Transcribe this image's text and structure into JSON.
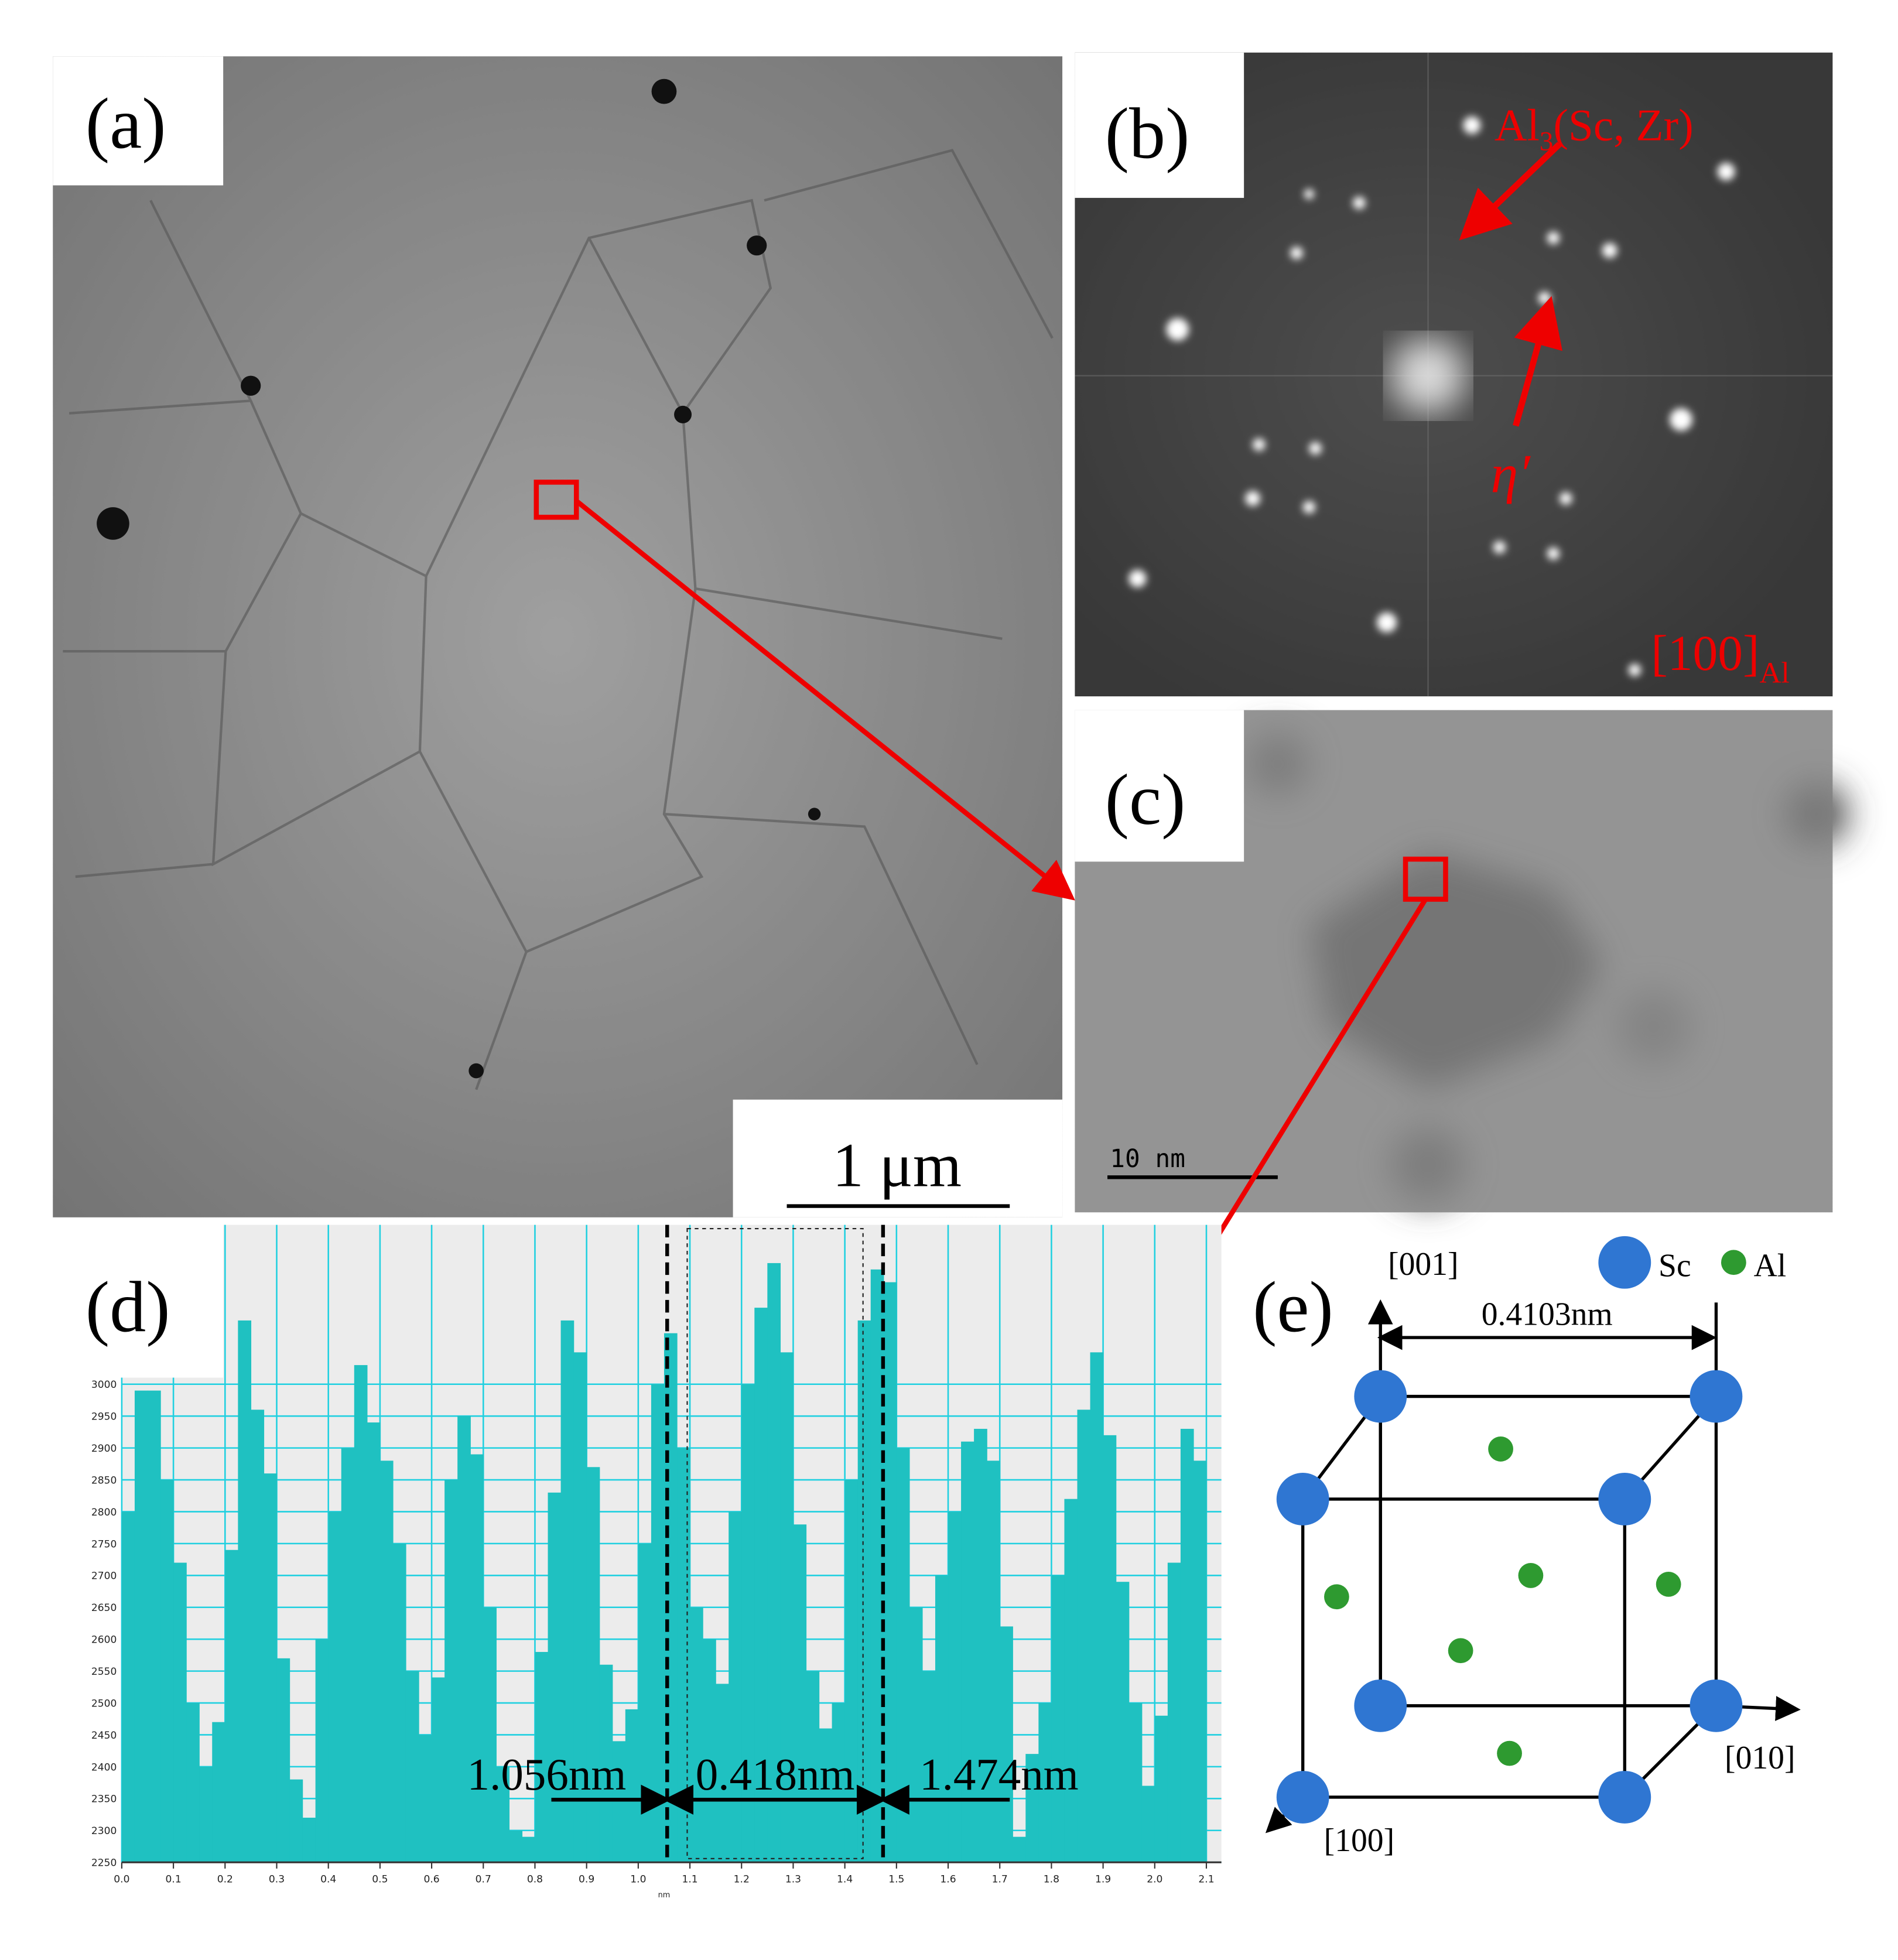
{
  "panels": {
    "a": {
      "label": "(a)",
      "scale_bar": "1 μm"
    },
    "b": {
      "label": "(b)",
      "precipitate": {
        "base": "Al",
        "sub": "3",
        "rest": "(Sc, Zr)"
      },
      "phase": "η′",
      "zone_axis": {
        "base": "[100]",
        "sub": "Al"
      }
    },
    "c": {
      "label": "(c)",
      "scale_bar": "10 nm"
    },
    "d": {
      "label": "(d)"
    },
    "e": {
      "label": "(e)",
      "axis_z": "[001]",
      "axis_y": "[010]",
      "axis_x": "[100]",
      "legend": [
        "Sc",
        "Al"
      ],
      "lattice": "0.4103nm"
    }
  },
  "chart_data": {
    "type": "histogram",
    "color": "#1fc1c1",
    "xlabel": "nm",
    "bins": [
      0,
      0.025,
      0.05,
      0.075,
      0.1,
      0.125,
      0.15,
      0.175,
      0.2,
      0.225,
      0.25,
      0.275,
      0.3,
      0.325,
      0.35,
      0.375,
      0.4,
      0.425,
      0.45,
      0.475,
      0.5,
      0.525,
      0.55,
      0.575,
      0.6,
      0.625,
      0.65,
      0.675,
      0.7,
      0.725,
      0.75,
      0.775,
      0.8,
      0.825,
      0.85,
      0.875,
      0.9,
      0.925,
      0.95,
      0.975,
      1.0,
      1.025,
      1.05,
      1.075,
      1.1,
      1.125,
      1.15,
      1.175,
      1.2,
      1.225,
      1.25,
      1.275,
      1.3,
      1.325,
      1.35,
      1.375,
      1.4,
      1.425,
      1.45,
      1.475,
      1.5,
      1.525,
      1.55,
      1.575,
      1.6,
      1.625,
      1.65,
      1.675,
      1.7,
      1.725,
      1.75,
      1.775,
      1.8,
      1.825,
      1.85,
      1.875,
      1.9,
      1.925,
      1.95,
      1.975,
      2.0,
      2.025,
      2.05,
      2.075,
      2.1
    ],
    "values": [
      2800,
      2990,
      2990,
      2850,
      2720,
      2500,
      2400,
      2470,
      2740,
      3100,
      2960,
      2860,
      2570,
      2380,
      2320,
      2600,
      2800,
      2900,
      3030,
      2940,
      2880,
      2750,
      2550,
      2450,
      2540,
      2850,
      2950,
      2890,
      2650,
      2400,
      2300,
      2290,
      2580,
      2830,
      3100,
      3050,
      2870,
      2560,
      2440,
      2490,
      2750,
      3000,
      3080,
      2900,
      2650,
      2600,
      2530,
      2800,
      3000,
      3120,
      3190,
      3050,
      2780,
      2550,
      2460,
      2500,
      2850,
      3100,
      3180,
      3160,
      2900,
      2650,
      2550,
      2700,
      2800,
      2910,
      2930,
      2880,
      2620,
      2290,
      2420,
      2500,
      2700,
      2820,
      2960,
      3050,
      2920,
      2690,
      2500,
      2370,
      2480,
      2720,
      2930,
      2880
    ],
    "xlim": [
      0,
      2.1
    ],
    "ylim": [
      2250,
      3250
    ],
    "xticks": [
      {
        "value": 0,
        "label": "0.0"
      },
      0.1,
      0.2,
      0.3,
      0.4,
      0.5,
      0.6,
      0.7,
      0.8,
      0.9,
      {
        "value": 1,
        "label": "1.0"
      },
      1.1,
      1.2,
      1.3,
      1.4,
      1.5,
      1.6,
      1.7,
      1.8,
      1.9,
      {
        "value": 2,
        "label": "2.0"
      },
      2.1
    ],
    "yticks": [
      2250,
      2300,
      2350,
      2400,
      2450,
      2500,
      2550,
      2600,
      2650,
      2700,
      2750,
      2800,
      2850,
      2900,
      2950,
      3000
    ],
    "grid": true,
    "grid_color": "#20d0e0",
    "markers": [
      1.056,
      1.474
    ],
    "annotations": [
      "1.056nm",
      "0.418nm",
      "1.474nm"
    ]
  }
}
